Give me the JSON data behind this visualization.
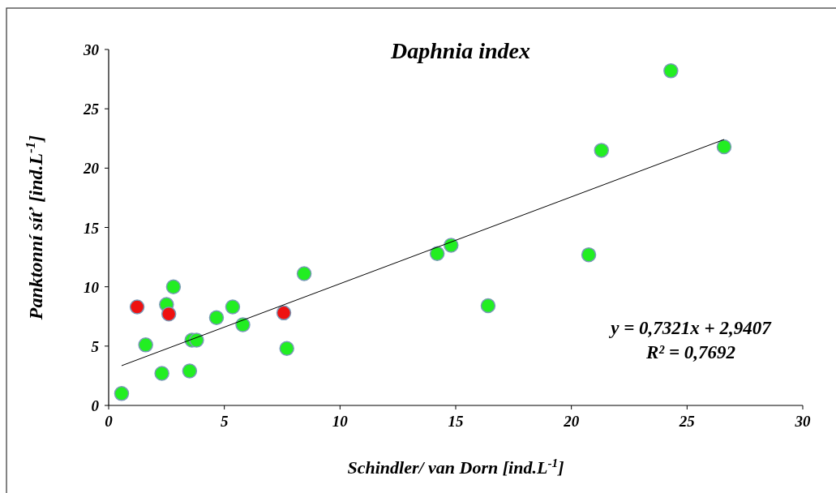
{
  "chart_data": {
    "type": "scatter",
    "title": "Daphnia index",
    "xlabel": "Schindler/ van Dorn  [ind.L$^{-1}$]",
    "ylabel": "Panktonní síť  [ind.L$^{-1}$]",
    "xlim": [
      0,
      30
    ],
    "ylim": [
      0,
      30
    ],
    "xticks": [
      0,
      5,
      10,
      15,
      20,
      25,
      30
    ],
    "yticks": [
      0,
      5,
      10,
      15,
      20,
      25,
      30
    ],
    "grid": false,
    "marker": "circle",
    "series": [
      {
        "color": "#22ee22",
        "x": [
          0.56,
          1.6,
          2.3,
          2.5,
          2.8,
          3.5,
          3.6,
          3.8,
          4.66,
          5.36,
          5.8,
          7.7,
          8.45,
          14.2,
          14.8,
          16.4,
          20.75,
          21.3,
          24.3,
          26.6
        ],
        "values": [
          1.0,
          5.1,
          2.7,
          8.5,
          10.0,
          2.9,
          5.5,
          5.5,
          7.4,
          8.3,
          6.8,
          4.8,
          11.1,
          12.8,
          13.5,
          8.4,
          12.7,
          21.5,
          28.2,
          21.8
        ]
      },
      {
        "color": "#ee1111",
        "x": [
          1.23,
          2.6,
          7.57
        ],
        "values": [
          8.3,
          7.7,
          7.8
        ]
      },
      {
        "type": "line",
        "marker": "none",
        "color": "#000000",
        "x": [
          0.56,
          26.6
        ],
        "values": [
          3.35,
          22.41
        ]
      }
    ],
    "annotations": [
      {
        "text": "y = 0,7321x + 2,9407"
      },
      {
        "text": "R² = 0,7692"
      }
    ]
  }
}
